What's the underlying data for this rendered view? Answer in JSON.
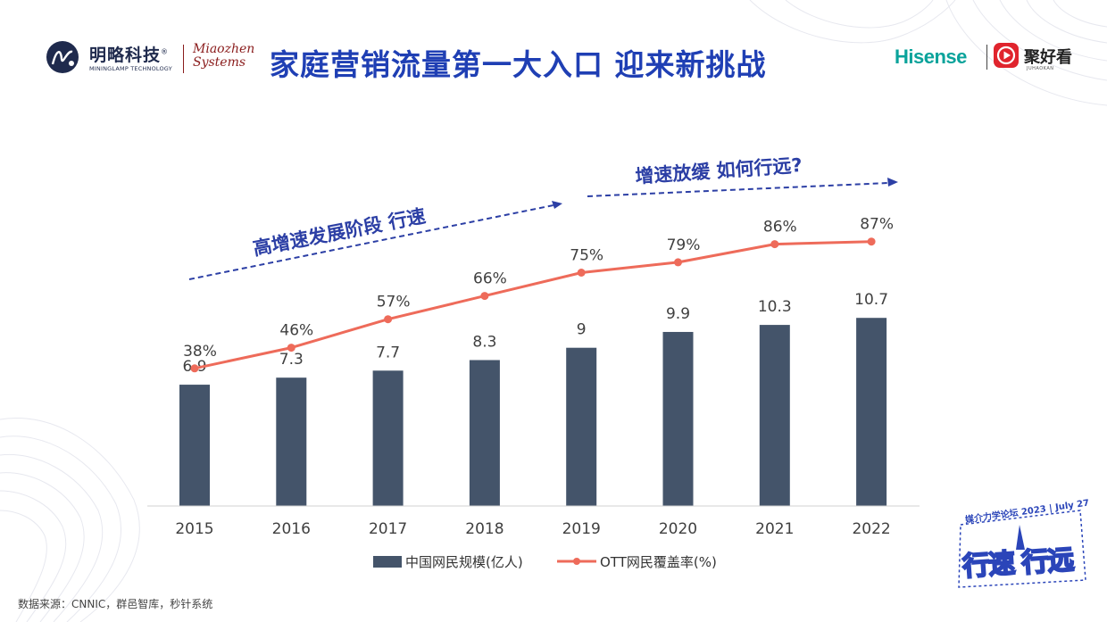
{
  "title": "家庭营销流量第一大入口 迎来新挑战",
  "logos": {
    "mininglamp_name": "明略科技",
    "mininglamp_reg": "®",
    "mininglamp_sub": "MININGLAMP TECHNOLOGY",
    "miaozhen_line1": "Miaozhen",
    "miaozhen_line2": "Systems",
    "hisense": "Hisense",
    "juhaokan": "聚好看",
    "juhaokan_sub": "JUHAOKAN"
  },
  "badge": {
    "meta_text": "媒介力学论坛 2023 | July 27",
    "word1": "行速",
    "word2": "行远"
  },
  "annotations": {
    "phase1": "高增速发展阶段 行速",
    "phase2": "增速放缓 如何行远?"
  },
  "source": "数据来源：CNNIC，群邑智库，秒针系统",
  "colors": {
    "bar": "#44546a",
    "line": "#ee6b5a",
    "title": "#1f3fb4",
    "arrow": "#2c3fa5"
  },
  "chart_data": {
    "type": "bar",
    "categories": [
      "2015",
      "2016",
      "2017",
      "2018",
      "2019",
      "2020",
      "2021",
      "2022"
    ],
    "series": [
      {
        "name": "中国网民规模(亿人)",
        "type": "bar",
        "values": [
          6.9,
          7.3,
          7.7,
          8.3,
          9,
          9.9,
          10.3,
          10.7
        ],
        "labels": [
          "6.9",
          "7.3",
          "7.7",
          "8.3",
          "9",
          "9.9",
          "10.3",
          "10.7"
        ]
      },
      {
        "name": "OTT网民覆盖率(%)",
        "type": "line",
        "values": [
          38,
          46,
          57,
          66,
          75,
          79,
          86,
          87
        ],
        "labels": [
          "38%",
          "46%",
          "57%",
          "66%",
          "75%",
          "79%",
          "86%",
          "87%"
        ]
      }
    ],
    "legend_position": "bottom",
    "grid": false
  }
}
